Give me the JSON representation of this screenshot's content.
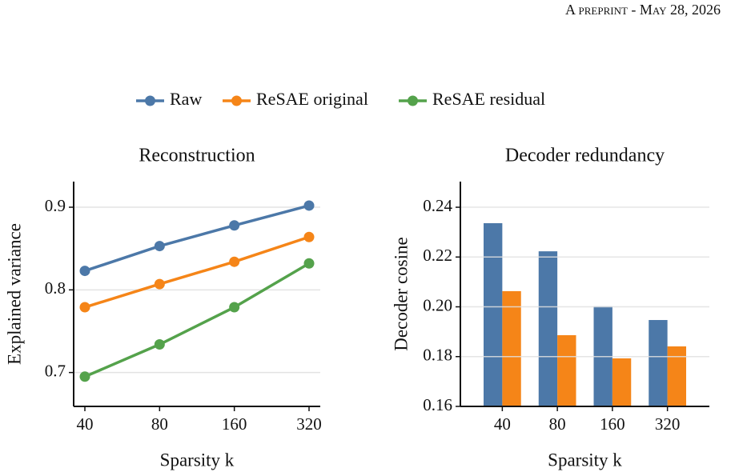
{
  "header": "A preprint - May 28, 2026",
  "chart_data": [
    {
      "type": "line",
      "title": "Reconstruction",
      "x_label": "Sparsity k",
      "y_label": "Explained variance",
      "categories": [
        "40",
        "80",
        "160",
        "320"
      ],
      "series": [
        {
          "name": "Raw",
          "color": "#4c78a8",
          "values": [
            0.823,
            0.853,
            0.878,
            0.902
          ]
        },
        {
          "name": "ReSAE original",
          "color": "#f58518",
          "values": [
            0.779,
            0.807,
            0.834,
            0.864
          ]
        },
        {
          "name": "ReSAE residual",
          "color": "#54a24b",
          "values": [
            0.695,
            0.734,
            0.779,
            0.832
          ]
        }
      ],
      "ylim": [
        0.659,
        0.931
      ],
      "yticks": [
        0.7,
        0.8,
        0.9
      ],
      "grid": true
    },
    {
      "type": "bar",
      "title": "Decoder redundancy",
      "x_label": "Sparsity k",
      "y_label": "Decoder cosine",
      "categories": [
        "40",
        "80",
        "160",
        "320"
      ],
      "series": [
        {
          "name": "Raw",
          "color": "#4c78a8",
          "values": [
            0.2336,
            0.2223,
            0.2002,
            0.1947
          ]
        },
        {
          "name": "ReSAE original",
          "color": "#f58518",
          "values": [
            0.2063,
            0.1886,
            0.1793,
            0.1841
          ]
        }
      ],
      "ylim": [
        0.16,
        0.2503
      ],
      "yticks": [
        0.16,
        0.18,
        {
          "value": 0.2,
          "label": "0.20"
        },
        0.22,
        0.24
      ],
      "grid": true
    }
  ]
}
